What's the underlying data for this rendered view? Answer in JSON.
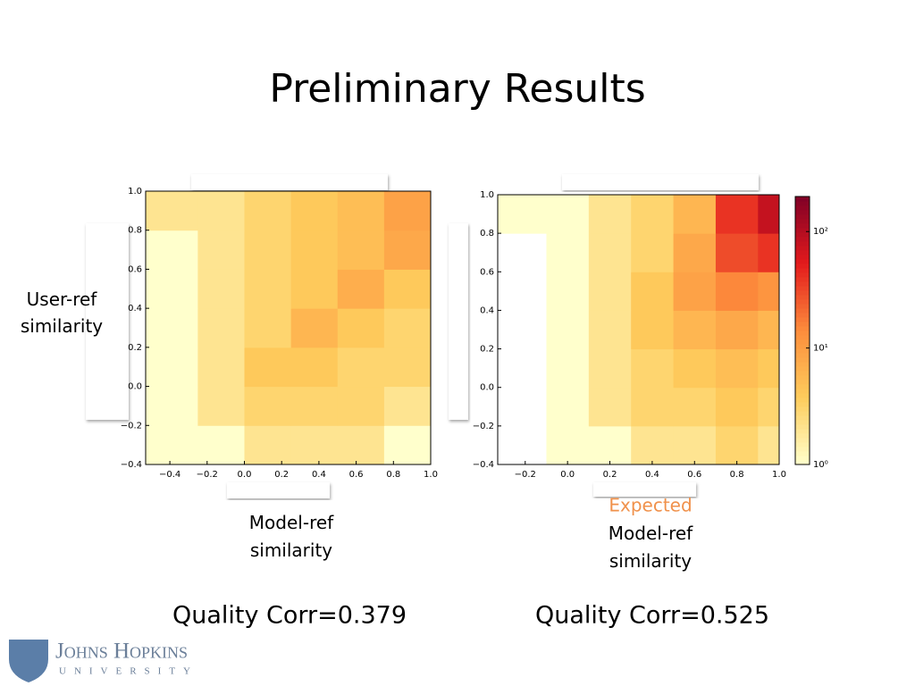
{
  "title": "Preliminary Results",
  "chart_data": [
    {
      "type": "hist2d",
      "ylabel": "User-ref similarity",
      "xlabel": "Model-ref similarity",
      "xlim": [
        -0.53,
        1.0
      ],
      "ylim": [
        -0.4,
        1.0
      ],
      "xbins": [
        -0.53,
        -0.25,
        0,
        0.25,
        0.5,
        0.75,
        1.0
      ],
      "ybins": [
        -0.4,
        -0.2,
        0,
        0.2,
        0.4,
        0.6,
        0.8,
        1.0
      ],
      "counts": [
        [
          1,
          1,
          2,
          2,
          2,
          1
        ],
        [
          1,
          2,
          3,
          3,
          3,
          2
        ],
        [
          1,
          2,
          4,
          4,
          3,
          3
        ],
        [
          1,
          2,
          3,
          6,
          4,
          3
        ],
        [
          1,
          2,
          3,
          4,
          7,
          4
        ],
        [
          1,
          2,
          3,
          4,
          5,
          8
        ],
        [
          2,
          2,
          3,
          4,
          5,
          9
        ]
      ],
      "xticks": [
        {
          "value": -0.4,
          "label": "−0.4"
        },
        {
          "value": -0.2,
          "label": "−0.2"
        },
        {
          "value": 0,
          "label": "0.0"
        },
        0.2,
        0.4,
        0.6,
        0.8,
        {
          "value": 1,
          "label": "1.0"
        }
      ],
      "yticks": [
        {
          "value": -0.4,
          "label": "−0.4"
        },
        {
          "value": -0.2,
          "label": "−0.2"
        },
        {
          "value": 0,
          "label": "0.0"
        },
        0.2,
        0.4,
        0.6,
        0.8,
        {
          "value": 1,
          "label": "1.0"
        }
      ],
      "clim": [
        1,
        200
      ],
      "log_color": true,
      "colormap": [
        "#ffffcc",
        "#fecc5c",
        "#fd8d3c",
        "#e31a1c",
        "#800026"
      ]
    },
    {
      "type": "hist2d",
      "xlabel": "Model-ref similarity",
      "note": "Expected",
      "xlim": [
        -0.33,
        1.0
      ],
      "ylim": [
        -0.4,
        1.0
      ],
      "xbins": [
        -0.33,
        -0.1,
        0.1,
        0.3,
        0.5,
        0.7,
        0.9,
        1.0
      ],
      "ybins": [
        -0.4,
        -0.2,
        0,
        0.2,
        0.4,
        0.6,
        0.8,
        1.0
      ],
      "counts": [
        [
          0,
          1,
          1,
          2,
          2,
          3,
          2
        ],
        [
          0,
          1,
          2,
          3,
          3,
          4,
          3
        ],
        [
          0,
          1,
          2,
          3,
          4,
          5,
          4
        ],
        [
          0,
          1,
          2,
          4,
          6,
          8,
          6
        ],
        [
          0,
          1,
          2,
          4,
          9,
          15,
          12
        ],
        [
          0,
          1,
          2,
          3,
          8,
          30,
          40
        ],
        [
          1,
          1,
          2,
          3,
          6,
          40,
          80
        ]
      ],
      "xticks": [
        {
          "value": -0.2,
          "label": "−0.2"
        },
        {
          "value": 0,
          "label": "0.0"
        },
        0.2,
        0.4,
        0.6,
        0.8,
        {
          "value": 1,
          "label": "1.0"
        }
      ],
      "yticks": [
        {
          "value": -0.4,
          "label": "−0.4"
        },
        {
          "value": -0.2,
          "label": "−0.2"
        },
        {
          "value": 0,
          "label": "0.0"
        },
        0.2,
        0.4,
        0.6,
        0.8,
        {
          "value": 1,
          "label": "1.0"
        }
      ],
      "clim": [
        1,
        200
      ],
      "log_color": true,
      "colormap": [
        "#ffffcc",
        "#fecc5c",
        "#fd8d3c",
        "#e31a1c",
        "#800026"
      ],
      "colorbar": true,
      "cticks": [
        {
          "value": 1,
          "label": "10⁰"
        },
        {
          "value": 10,
          "label": "10¹"
        },
        {
          "value": 100,
          "label": "10²"
        }
      ]
    }
  ],
  "captions": [
    "Quality Corr=0.379",
    "Quality Corr=0.525"
  ],
  "logo": {
    "name": "Johns Hopkins",
    "sub": "UNIVERSITY"
  }
}
